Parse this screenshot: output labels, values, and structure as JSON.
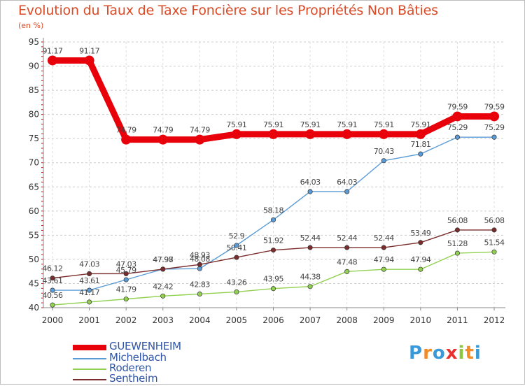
{
  "chart_data": {
    "type": "line",
    "title": "Evolution du Taux de Taxe Foncière sur les Propriétés Non Bâties",
    "subtitle": "(en %)",
    "x": [
      "2000",
      "2001",
      "2002",
      "2003",
      "2004",
      "2005",
      "2006",
      "2007",
      "2008",
      "2009",
      "2010",
      "2011",
      "2012"
    ],
    "ylim": [
      40,
      95
    ],
    "yticks": [
      "40",
      "45",
      "50",
      "55",
      "60",
      "65",
      "70",
      "75",
      "80",
      "85",
      "90",
      "95"
    ],
    "grid": true,
    "legend_position": "bottom-left",
    "series": [
      {
        "name": "GUEWENHEIM",
        "color": "#e8000b",
        "values": [
          91.17,
          91.17,
          74.79,
          74.79,
          74.79,
          75.91,
          75.91,
          75.91,
          75.91,
          75.91,
          75.91,
          79.59,
          79.59
        ],
        "labels": [
          "91.17",
          "91.17",
          "74.79",
          "74.79",
          "74.79",
          "75.91",
          "75.91",
          "75.91",
          "75.91",
          "75.91",
          "75.91",
          "79.59",
          "79.59"
        ]
      },
      {
        "name": "Michelbach",
        "color": "#5b9bd5",
        "values": [
          43.61,
          43.61,
          45.79,
          47.98,
          48.08,
          52.9,
          58.18,
          64.03,
          64.03,
          70.43,
          71.81,
          75.29,
          75.29
        ],
        "labels": [
          "43.61",
          "43.61",
          "45.79",
          "47.98",
          "48.08",
          "52.9",
          "58.18",
          "64.03",
          "64.03",
          "70.43",
          "71.81",
          "75.29",
          "75.29"
        ]
      },
      {
        "name": "Roderen",
        "color": "#92d050",
        "values": [
          40.56,
          41.17,
          41.79,
          42.42,
          42.83,
          43.26,
          43.95,
          44.38,
          47.48,
          47.94,
          47.94,
          51.28,
          51.54
        ],
        "labels": [
          "40.56",
          "41.17",
          "41.79",
          "42.42",
          "42.83",
          "43.26",
          "43.95",
          "44.38",
          "47.48",
          "47.94",
          "47.94",
          "51.28",
          "51.54"
        ]
      },
      {
        "name": "Sentheim",
        "color": "#7b2c2c",
        "values": [
          46.12,
          47.03,
          47.03,
          47.97,
          48.93,
          50.41,
          51.92,
          52.44,
          52.44,
          52.44,
          53.49,
          56.08,
          56.08
        ],
        "labels": [
          "46.12",
          "47.03",
          "47.03",
          "47.97",
          "48.93",
          "50.41",
          "51.92",
          "52.44",
          "52.44",
          "52.44",
          "53.49",
          "56.08",
          "56.08"
        ]
      }
    ]
  },
  "legend": {
    "items": [
      {
        "label": "GUEWENHEIM"
      },
      {
        "label": "Michelbach"
      },
      {
        "label": "Roderen"
      },
      {
        "label": "Sentheim"
      }
    ]
  },
  "brand": {
    "logo_letters": [
      "P",
      "r",
      "o",
      "x",
      "i",
      "t",
      "i"
    ],
    "logo_colors": [
      "#3a9ad9",
      "#f28c28",
      "#3a9ad9",
      "#e8312f",
      "#8cc63f",
      "#f28c28",
      "#3a9ad9"
    ]
  }
}
